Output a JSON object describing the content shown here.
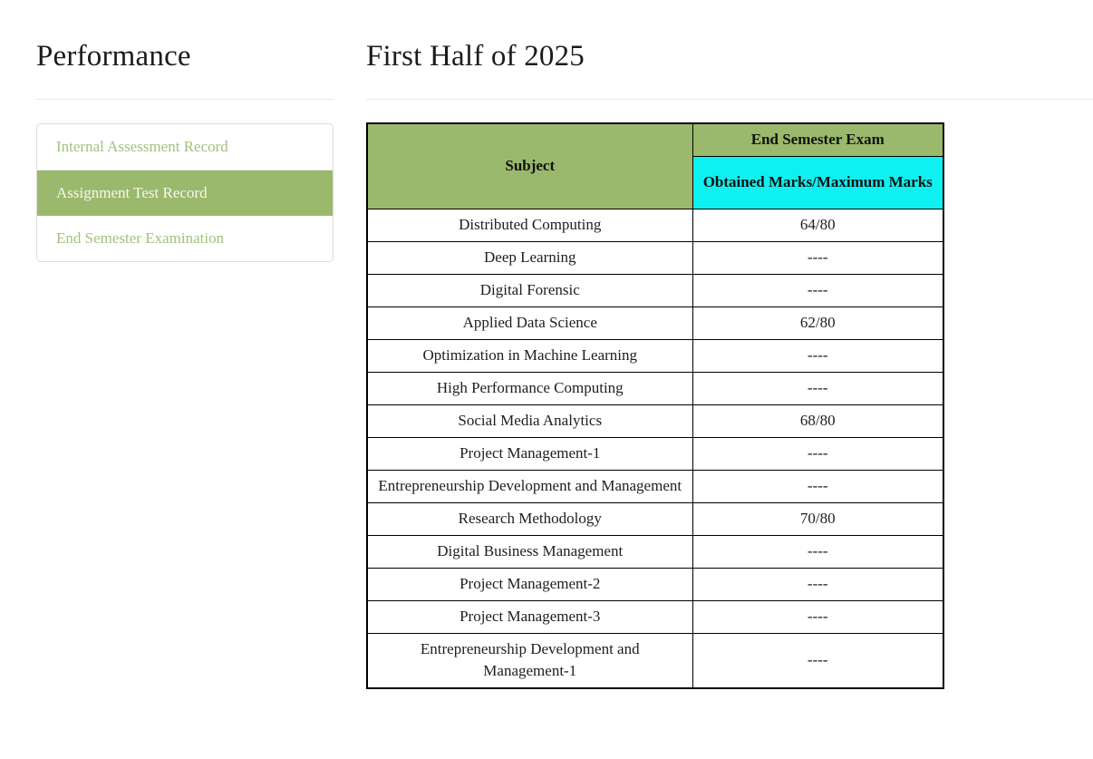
{
  "left_panel": {
    "title": "Performance"
  },
  "sidebar": {
    "items": [
      {
        "label": "Internal Assessment Record",
        "active": false
      },
      {
        "label": "Assignment Test Record",
        "active": true
      },
      {
        "label": "End Semester Examination",
        "active": false
      }
    ]
  },
  "main": {
    "title": "First Half of 2025"
  },
  "table": {
    "header": {
      "subject": "Subject",
      "exam_group": "End Semester Exam",
      "marks_label": "Obtained Marks/Maximum Marks"
    },
    "rows": [
      {
        "subject": "Distributed Computing",
        "marks": "64/80"
      },
      {
        "subject": "Deep Learning",
        "marks": "----"
      },
      {
        "subject": "Digital Forensic",
        "marks": "----"
      },
      {
        "subject": "Applied Data Science",
        "marks": "62/80"
      },
      {
        "subject": "Optimization in Machine Learning",
        "marks": "----"
      },
      {
        "subject": "High Performance Computing",
        "marks": "----"
      },
      {
        "subject": "Social Media Analytics",
        "marks": "68/80"
      },
      {
        "subject": "Project Management-1",
        "marks": "----"
      },
      {
        "subject": "Entrepreneurship Development and Management",
        "marks": "----"
      },
      {
        "subject": "Research Methodology",
        "marks": "70/80"
      },
      {
        "subject": "Digital Business Management",
        "marks": "----"
      },
      {
        "subject": "Project Management-2",
        "marks": "----"
      },
      {
        "subject": "Project Management-3",
        "marks": "----"
      },
      {
        "subject": "Entrepreneurship Development and Management-1",
        "marks": "----"
      }
    ]
  },
  "colors": {
    "accent_green": "#9bb96c",
    "header_cyan": "#0ff0f0",
    "sidebar_link_green": "#a3c17e"
  }
}
